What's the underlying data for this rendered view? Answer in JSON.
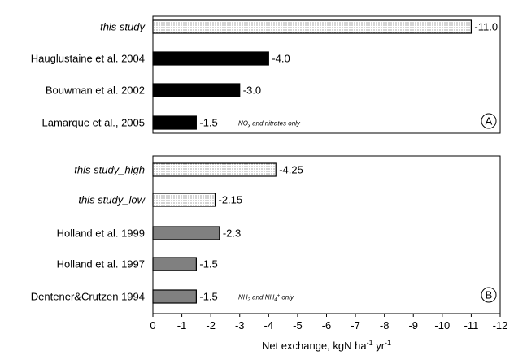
{
  "chart_data": {
    "type": "bar",
    "orientation": "horizontal",
    "xlabel_main": "Net exchange, kgN ha",
    "xlabel_unit_exp1": "-1",
    "xlabel_mid": " yr",
    "xlabel_unit_exp2": "-1",
    "xlim": [
      0,
      -12
    ],
    "x_ticks": [
      "0",
      "-1",
      "-2",
      "-3",
      "-4",
      "-5",
      "-6",
      "-7",
      "-8",
      "-9",
      "-10",
      "-11",
      "-12"
    ],
    "colors": {
      "dotted": "#ffffff",
      "black": "#000000",
      "gray": "#808080",
      "dot": "#333333"
    },
    "panels": [
      {
        "letter": "A",
        "note_base": "NO",
        "note_sub": "x",
        "note_rest": " and nitrates only",
        "bars": [
          {
            "label": "this study",
            "italic": true,
            "value": -11.0,
            "value_label": "-11.0",
            "style": "dotted"
          },
          {
            "label": "Hauglustaine et al. 2004",
            "italic": false,
            "value": -4.0,
            "value_label": "-4.0",
            "style": "black"
          },
          {
            "label": "Bouwman et al. 2002",
            "italic": false,
            "value": -3.0,
            "value_label": "-3.0",
            "style": "black"
          },
          {
            "label": "Lamarque et al., 2005",
            "italic": false,
            "value": -1.5,
            "value_label": "-1.5",
            "style": "black"
          }
        ]
      },
      {
        "letter": "B",
        "note_base": "NH",
        "note_sub": "3",
        "note_rest": " and NH",
        "note_sub2": "4",
        "note_sup2": "+",
        "note_rest2": " only",
        "bars": [
          {
            "label": "this study_high",
            "italic": true,
            "value": -4.25,
            "value_label": "-4.25",
            "style": "dotted"
          },
          {
            "label": "this study_low",
            "italic": true,
            "value": -2.15,
            "value_label": "-2.15",
            "style": "dotted"
          },
          {
            "label": "Holland et al. 1999",
            "italic": false,
            "value": -2.3,
            "value_label": "-2.3",
            "style": "gray"
          },
          {
            "label": "Holland et al. 1997",
            "italic": false,
            "value": -1.5,
            "value_label": "-1.5",
            "style": "gray"
          },
          {
            "label": "Dentener&Crutzen 1994",
            "italic": false,
            "value": -1.5,
            "value_label": "-1.5",
            "style": "gray"
          }
        ]
      }
    ]
  }
}
